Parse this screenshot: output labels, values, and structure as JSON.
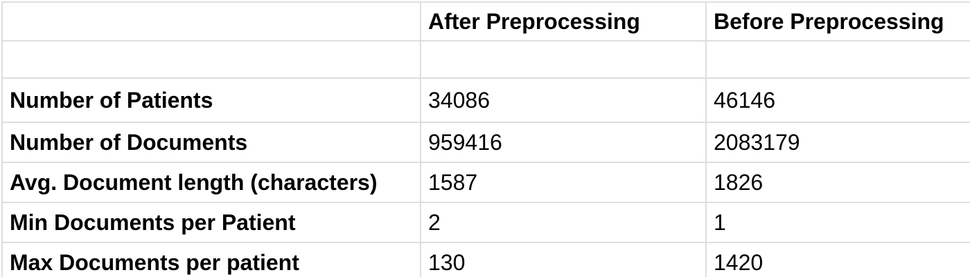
{
  "table": {
    "headers": [
      "",
      "After Preprocessing",
      "Before Preprocessing"
    ],
    "rows": [
      {
        "label": "Number of Patients",
        "after": "34086",
        "before": "46146"
      },
      {
        "label": "Number of Documents",
        "after": "959416",
        "before": "2083179"
      },
      {
        "label": "Avg. Document length (characters)",
        "after": "1587",
        "before": "1826"
      },
      {
        "label": "Min Documents per Patient",
        "after": "2",
        "before": "1"
      },
      {
        "label": "Max Documents per patient",
        "after": "130",
        "before": "1420"
      }
    ]
  }
}
